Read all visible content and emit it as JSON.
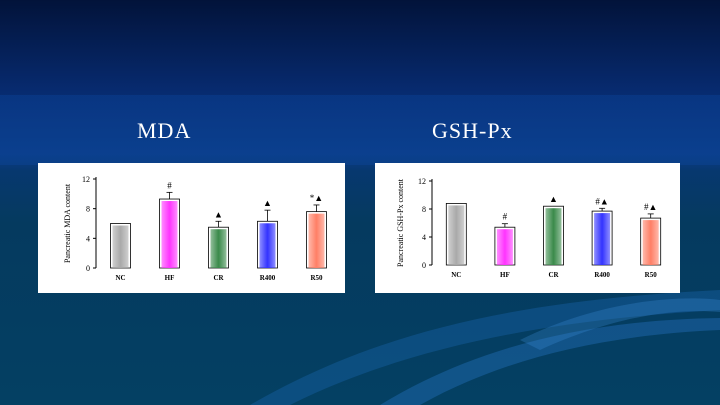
{
  "slide": {
    "title_left": "MDA",
    "title_right": "GSH-Px",
    "accent_colors": {
      "background_top": "#02133a",
      "background_band": "#0b3c8c",
      "background_bottom": "#044063",
      "swoosh": "#1c6ab8"
    }
  },
  "chart_data": [
    {
      "type": "bar",
      "title": "MDA",
      "ylabel": "Pancreatic MDA content",
      "xlabel": "",
      "categories": [
        "NC",
        "HF",
        "CR",
        "R400",
        "R50"
      ],
      "values": [
        6,
        9.3,
        5.5,
        6.3,
        7.6
      ],
      "errors": [
        0,
        0.9,
        0.8,
        1.5,
        0.9
      ],
      "annotations": [
        "",
        "#",
        "▲",
        "▲",
        "*▲"
      ],
      "colors": [
        "#a9a9a9",
        "#ff33ff",
        "#3a8a4a",
        "#3333ff",
        "#ff7f66"
      ],
      "ylim": [
        0,
        12
      ],
      "yticks": [
        0,
        4,
        8,
        12
      ],
      "grid": false,
      "legend": "none"
    },
    {
      "type": "bar",
      "title": "GSH-Px",
      "ylabel": "Pancreatic GSH-Px content",
      "xlabel": "",
      "categories": [
        "NC",
        "HF",
        "CR",
        "R400",
        "R50"
      ],
      "values": [
        8.8,
        5.4,
        8.4,
        7.7,
        6.7
      ],
      "errors": [
        0,
        0.5,
        0,
        0.4,
        0.6
      ],
      "annotations": [
        "",
        "#",
        "▲",
        "#▲",
        "#▲"
      ],
      "colors": [
        "#a9a9a9",
        "#ff33ff",
        "#3a8a4a",
        "#3333ff",
        "#ff7f66"
      ],
      "ylim": [
        0,
        12
      ],
      "yticks": [
        0,
        4,
        8,
        12
      ],
      "grid": false,
      "legend": "none"
    }
  ]
}
